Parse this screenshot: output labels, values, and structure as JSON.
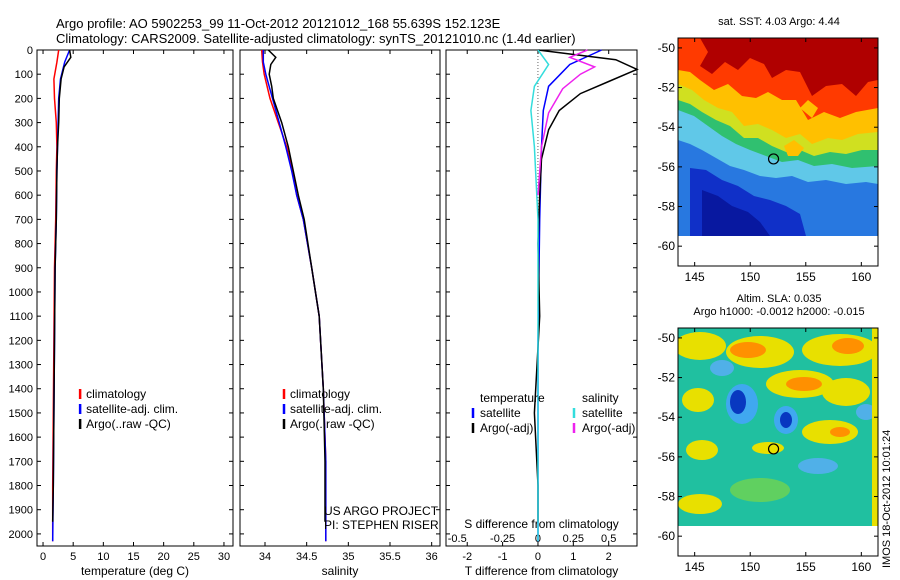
{
  "header": {
    "line1": "Argo profile: AO 5902253_99 11-Oct-2012 20121012_168 55.639S 152.123E",
    "line2": "Climatology: CARS2009. Satellite-adjusted climatology: synTS_20121010.nc (1.4d earlier)"
  },
  "side_label": "IMOS 18-Oct-2012 10:01:24",
  "colors": {
    "climatology": "#ff0000",
    "satellite": "#0000ff",
    "argo": "#000000",
    "salinity_sat": "#33dddd",
    "salinity_argo": "#ee22ee"
  },
  "chart_data": [
    {
      "type": "line",
      "id": "temperature",
      "xlabel": "temperature (deg C)",
      "ylabel": "",
      "xlim": [
        -1,
        31.5
      ],
      "ylim": [
        2050,
        0
      ],
      "xticks": [
        0,
        5,
        10,
        15,
        20,
        25,
        30
      ],
      "yticks": [
        0,
        100,
        200,
        300,
        400,
        500,
        600,
        700,
        800,
        900,
        1000,
        1100,
        1200,
        1300,
        1400,
        1500,
        1600,
        1700,
        1800,
        1900,
        2000
      ],
      "legend": [
        "climatology",
        "satellite-adj. clim.",
        "Argo(..raw -QC)"
      ],
      "series": [
        {
          "name": "climatology",
          "color": "#ff0000",
          "x": [
            2.6,
            2.3,
            1.8,
            1.9,
            2.2,
            2.3,
            2.2,
            2.1,
            1.9,
            1.8,
            1.7,
            1.6,
            1.6
          ],
          "y": [
            0,
            50,
            120,
            200,
            300,
            400,
            500,
            700,
            900,
            1200,
            1500,
            1800,
            2030
          ]
        },
        {
          "name": "satellite-adj. clim.",
          "color": "#0000ff",
          "x": [
            4.4,
            3.6,
            2.9,
            2.6,
            2.5,
            2.4,
            2.3,
            2.2,
            2.0,
            1.9,
            1.8,
            1.7,
            1.6
          ],
          "y": [
            0,
            50,
            120,
            200,
            300,
            400,
            500,
            700,
            900,
            1200,
            1500,
            1800,
            2030
          ]
        },
        {
          "name": "Argo(..raw -QC)",
          "color": "#000000",
          "x": [
            4.4,
            4.6,
            3.5,
            3.0,
            2.7,
            2.6,
            2.4,
            2.3,
            2.2,
            2.0,
            1.9,
            1.8,
            1.7,
            1.6
          ],
          "y": [
            0,
            30,
            70,
            120,
            200,
            300,
            400,
            500,
            700,
            900,
            1200,
            1500,
            1800,
            1950
          ]
        }
      ]
    },
    {
      "type": "line",
      "id": "salinity",
      "xlabel": "salinity",
      "ylabel": "",
      "xlim": [
        33.7,
        36.1
      ],
      "ylim": [
        2050,
        0
      ],
      "xticks": [
        34,
        34.5,
        35,
        35.5,
        36
      ],
      "legend": [
        "climatology",
        "satellite-adj. clim.",
        "Argo(..raw -QC)"
      ],
      "annotation": [
        "US ARGO PROJECT",
        "PI: STEPHEN RISER"
      ],
      "series": [
        {
          "name": "climatology",
          "color": "#ff0000",
          "x": [
            33.96,
            33.97,
            33.99,
            34.06,
            34.16,
            34.26,
            34.33,
            34.38,
            34.46,
            34.56,
            34.65,
            34.7,
            34.73,
            34.73
          ],
          "y": [
            0,
            50,
            100,
            200,
            300,
            400,
            500,
            600,
            700,
            900,
            1100,
            1400,
            1700,
            2030
          ]
        },
        {
          "name": "satellite-adj. clim.",
          "color": "#0000ff",
          "x": [
            33.98,
            33.98,
            34.01,
            34.09,
            34.17,
            34.25,
            34.32,
            34.38,
            34.46,
            34.56,
            34.65,
            34.7,
            34.73,
            34.73
          ],
          "y": [
            0,
            50,
            100,
            200,
            300,
            400,
            500,
            600,
            700,
            900,
            1100,
            1400,
            1700,
            2030
          ]
        },
        {
          "name": "Argo(..raw -QC)",
          "color": "#000000",
          "x": [
            34.04,
            34.13,
            34.07,
            34.05,
            34.08,
            34.1,
            34.2,
            34.28,
            34.34,
            34.4,
            34.47,
            34.56,
            34.65,
            34.7,
            34.72,
            34.72
          ],
          "y": [
            0,
            30,
            60,
            100,
            150,
            200,
            300,
            400,
            500,
            600,
            700,
            900,
            1100,
            1400,
            1700,
            1950
          ]
        }
      ]
    },
    {
      "type": "line",
      "id": "difference",
      "xlabel": "T difference from climatology",
      "xlabel2": "S difference from climatology",
      "ylabel": "",
      "xlim": [
        -2.6,
        2.8
      ],
      "ylim": [
        2050,
        0
      ],
      "xticks": [
        -2,
        -1,
        0,
        1,
        2
      ],
      "xticks2": [
        -0.5,
        -0.25,
        0,
        0.25,
        0.5
      ],
      "legend_temperature": [
        "temperature",
        "satellite",
        "Argo(-adj)"
      ],
      "legend_salinity": [
        "salinity",
        "satellite",
        "Argo(-adj)"
      ],
      "series": [
        {
          "name": "temperature satellite",
          "color": "#0000ff",
          "x": [
            1.8,
            0.9,
            0.3,
            0.15,
            0.1,
            0.05,
            0,
            0
          ],
          "y": [
            0,
            60,
            150,
            250,
            400,
            700,
            1200,
            2030
          ]
        },
        {
          "name": "temperature Argo(-adj)",
          "color": "#000000",
          "x": [
            0,
            2.2,
            2.8,
            2.0,
            1.2,
            0.6,
            0.3,
            0.1,
            0.05,
            0,
            0.05,
            -0.1,
            0,
            0
          ],
          "y": [
            0,
            40,
            80,
            130,
            180,
            250,
            330,
            450,
            600,
            800,
            1100,
            1500,
            1800,
            1950
          ]
        },
        {
          "name": "salinity satellite",
          "color": "#33dddd",
          "x": [
            0,
            0.3,
            -0.1,
            -0.2,
            -0.1,
            0,
            0,
            0
          ],
          "y": [
            0,
            60,
            150,
            250,
            400,
            700,
            1200,
            2030
          ]
        },
        {
          "name": "salinity Argo(-adj)",
          "color": "#ee22ee",
          "x": [
            1.4,
            0.9,
            1.6,
            1.2,
            0.7,
            0.3,
            0.1,
            0
          ],
          "y": [
            0,
            30,
            70,
            100,
            160,
            260,
            400,
            600
          ]
        }
      ]
    },
    {
      "type": "heatmap",
      "id": "sst_map",
      "title": "sat. SST: 4.03 Argo: 4.44",
      "xlim": [
        143.5,
        161.5
      ],
      "ylim": [
        -61,
        -49.5
      ],
      "xticks": [
        145,
        150,
        155,
        160
      ],
      "yticks": [
        -50,
        -52,
        -54,
        -56,
        -58,
        -60
      ],
      "marker": {
        "x": 152.1,
        "y": -55.6
      }
    },
    {
      "type": "heatmap",
      "id": "sla_map",
      "title": "Altim. SLA: 0.035",
      "subtitle": "Argo h1000: -0.0012 h2000: -0.015",
      "xlim": [
        143.5,
        161.5
      ],
      "ylim": [
        -61,
        -49.5
      ],
      "xticks": [
        145,
        150,
        155,
        160
      ],
      "yticks": [
        -50,
        -52,
        -54,
        -56,
        -58,
        -60
      ],
      "marker": {
        "x": 152.1,
        "y": -55.6
      }
    }
  ]
}
